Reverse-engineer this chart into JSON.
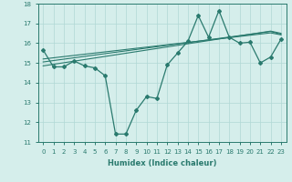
{
  "xlabel": "Humidex (Indice chaleur)",
  "x_values": [
    0,
    1,
    2,
    3,
    4,
    5,
    6,
    7,
    8,
    9,
    10,
    11,
    12,
    13,
    14,
    15,
    16,
    17,
    18,
    19,
    20,
    21,
    22,
    23
  ],
  "main_line": [
    15.65,
    14.8,
    14.8,
    15.1,
    14.85,
    14.75,
    14.35,
    11.4,
    11.4,
    12.6,
    13.3,
    13.2,
    14.9,
    15.5,
    16.1,
    17.4,
    16.3,
    17.65,
    16.3,
    16.0,
    16.05,
    15.0,
    15.3,
    16.2
  ],
  "trend_line1": [
    15.05,
    15.12,
    15.19,
    15.26,
    15.33,
    15.4,
    15.47,
    15.54,
    15.61,
    15.68,
    15.75,
    15.82,
    15.89,
    15.96,
    16.03,
    16.1,
    16.17,
    16.24,
    16.31,
    16.38,
    16.45,
    16.52,
    16.59,
    16.45
  ],
  "trend_line2": [
    15.2,
    15.26,
    15.32,
    15.38,
    15.44,
    15.5,
    15.56,
    15.62,
    15.68,
    15.74,
    15.8,
    15.86,
    15.92,
    15.98,
    16.04,
    16.1,
    16.16,
    16.22,
    16.28,
    16.34,
    16.4,
    16.46,
    16.52,
    16.42
  ],
  "trend_line3": [
    14.85,
    14.93,
    15.01,
    15.09,
    15.17,
    15.25,
    15.33,
    15.41,
    15.49,
    15.57,
    15.65,
    15.73,
    15.81,
    15.89,
    15.97,
    16.05,
    16.13,
    16.21,
    16.29,
    16.37,
    16.45,
    16.53,
    16.61,
    16.5
  ],
  "line_color": "#2a7a6e",
  "bg_color": "#d5eeeb",
  "grid_color": "#b0d8d5",
  "ylim": [
    11,
    18
  ],
  "yticks": [
    11,
    12,
    13,
    14,
    15,
    16,
    17,
    18
  ],
  "xlim": [
    -0.5,
    23.5
  ]
}
